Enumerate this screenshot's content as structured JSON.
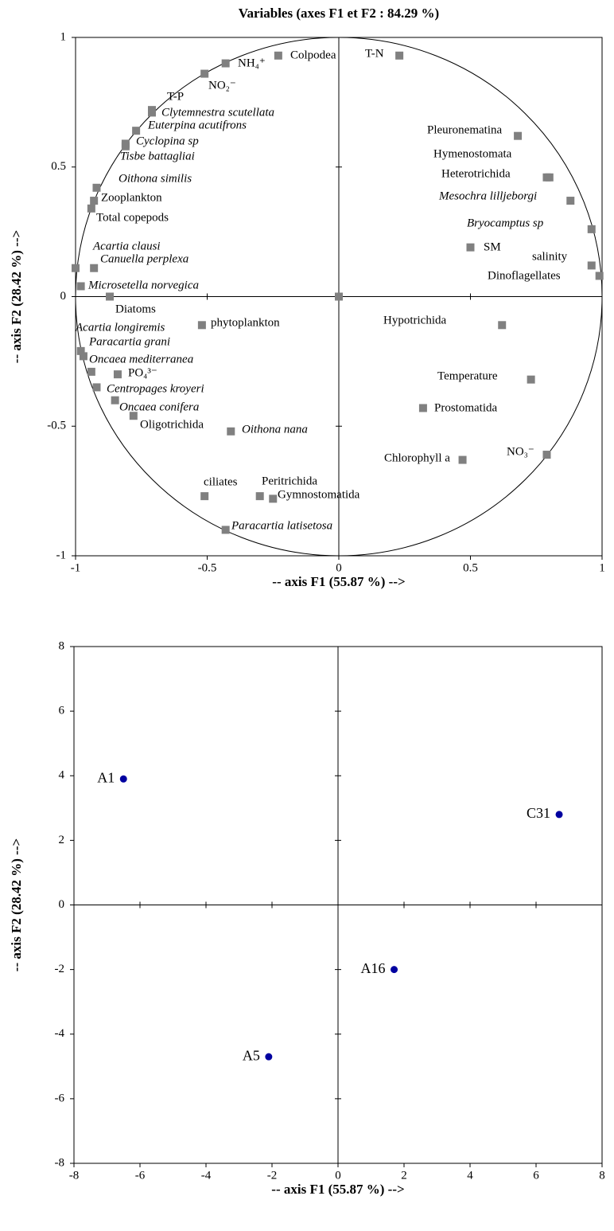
{
  "chart_data": [
    {
      "type": "scatter",
      "title": "Variables (axes F1 et F2 : 84.29 %)",
      "x_label": "-- axis F1 (55.87 %) -->",
      "y_label": "-- axis F2 (28.42 %) -->",
      "marker": "square",
      "color": "#808080",
      "unit_circle": true,
      "xlim": [
        -1,
        1
      ],
      "ylim": [
        -1,
        1
      ],
      "xticks": [
        -1,
        -0.5,
        0,
        0.5,
        1
      ],
      "yticks": [
        -1,
        -0.5,
        0,
        0.5,
        1
      ],
      "labels": [
        "Colpodea",
        "NH₄⁺",
        "NO₂⁻",
        "T-P",
        "Clytemnestra scutellata",
        "Euterpina acutifrons",
        "Cyclopina sp",
        "Tisbe battagliai",
        "Oithona similis",
        "Zooplankton",
        "Total copepods",
        "Acartia clausi",
        "Canuella perplexa",
        "Microsetella norvegica",
        "Diatoms",
        "phytoplankton",
        "Acartia longiremis",
        "Paracartia grani",
        "Oncaea mediterranea",
        "PO₄³⁻",
        "Centropages kroyeri",
        "Oncaea conifera",
        "Oligotrichida",
        "Oithona nana",
        "ciliates",
        "Peritrichida",
        "Gymnostomatida",
        "Paracartia latisetosa",
        "T-N",
        "Pleuronematina",
        "Hymenostomata",
        "Heterotrichida",
        "Mesochra lilljeborgi",
        "Bryocamptus sp",
        "SM",
        "salinity",
        "Dinoflagellates",
        "Hypotrichida",
        "Temperature",
        "Prostomatida",
        "Chlorophyll a",
        "NO₃⁻",
        null
      ],
      "italic": [
        false,
        false,
        false,
        false,
        true,
        true,
        true,
        true,
        true,
        false,
        false,
        true,
        true,
        true,
        false,
        false,
        true,
        true,
        true,
        false,
        true,
        true,
        false,
        true,
        false,
        false,
        false,
        true,
        false,
        false,
        false,
        false,
        true,
        true,
        false,
        false,
        false,
        false,
        false,
        false,
        false,
        false,
        false
      ],
      "x": [
        -0.23,
        -0.43,
        -0.51,
        -0.71,
        -0.71,
        -0.77,
        -0.81,
        -0.81,
        -0.92,
        -0.93,
        -0.94,
        -1.0,
        -0.93,
        -0.98,
        -0.87,
        -0.52,
        -0.98,
        -0.97,
        -0.94,
        -0.84,
        -0.92,
        -0.85,
        -0.78,
        -0.41,
        -0.51,
        -0.3,
        -0.25,
        -0.43,
        0.23,
        0.68,
        0.8,
        0.79,
        0.88,
        0.96,
        0.5,
        0.96,
        0.99,
        0.62,
        0.73,
        0.32,
        0.47,
        0.79,
        0
      ],
      "values": [
        0.93,
        0.9,
        0.86,
        0.72,
        0.71,
        0.64,
        0.59,
        0.58,
        0.42,
        0.37,
        0.34,
        0.11,
        0.11,
        0.04,
        0.0,
        -0.11,
        -0.21,
        -0.23,
        -0.29,
        -0.3,
        -0.35,
        -0.4,
        -0.46,
        -0.52,
        -0.77,
        -0.77,
        -0.78,
        -0.9,
        0.93,
        0.62,
        0.46,
        0.46,
        0.37,
        0.26,
        0.19,
        0.12,
        0.08,
        -0.11,
        -0.32,
        -0.43,
        -0.63,
        -0.61,
        0
      ]
    },
    {
      "type": "scatter",
      "x_label": "-- axis F1 (55.87 %) -->",
      "y_label": "-- axis F2 (28.42 %) -->",
      "marker": "circle",
      "color": "#0000a0",
      "xlim": [
        -8,
        8
      ],
      "ylim": [
        -8,
        8
      ],
      "xticks": [
        -8,
        -6,
        -4,
        -2,
        0,
        2,
        4,
        6,
        8
      ],
      "yticks": [
        -8,
        -6,
        -4,
        -2,
        0,
        2,
        4,
        6,
        8
      ],
      "labels": [
        "A1",
        "C31",
        "A16",
        "A5"
      ],
      "x": [
        -6.5,
        6.7,
        1.7,
        -2.1
      ],
      "values": [
        3.9,
        2.8,
        -2.0,
        -4.7
      ]
    }
  ]
}
